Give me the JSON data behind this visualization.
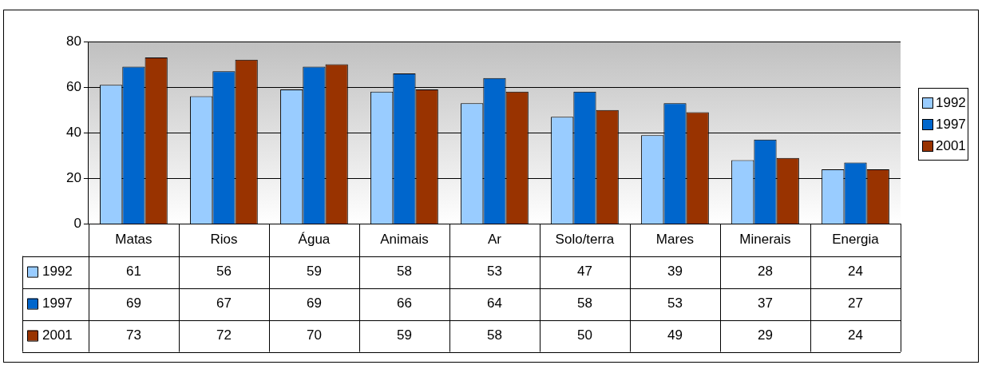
{
  "chart_data": {
    "type": "bar",
    "categories": [
      "Matas",
      "Rios",
      "Água",
      "Animais",
      "Ar",
      "Solo/terra",
      "Mares",
      "Minerais",
      "Energia"
    ],
    "series": [
      {
        "name": "1992",
        "color": "#99ccff",
        "values": [
          61,
          56,
          59,
          58,
          53,
          47,
          39,
          28,
          24
        ]
      },
      {
        "name": "1997",
        "color": "#0066cc",
        "values": [
          69,
          67,
          69,
          66,
          64,
          58,
          53,
          37,
          27
        ]
      },
      {
        "name": "2001",
        "color": "#993300",
        "values": [
          73,
          72,
          70,
          59,
          58,
          50,
          49,
          29,
          24
        ]
      }
    ],
    "ylim": [
      0,
      80
    ],
    "yticks": [
      0,
      20,
      40,
      60,
      80
    ],
    "grid": "y",
    "legend": "right",
    "data_labels": true
  }
}
